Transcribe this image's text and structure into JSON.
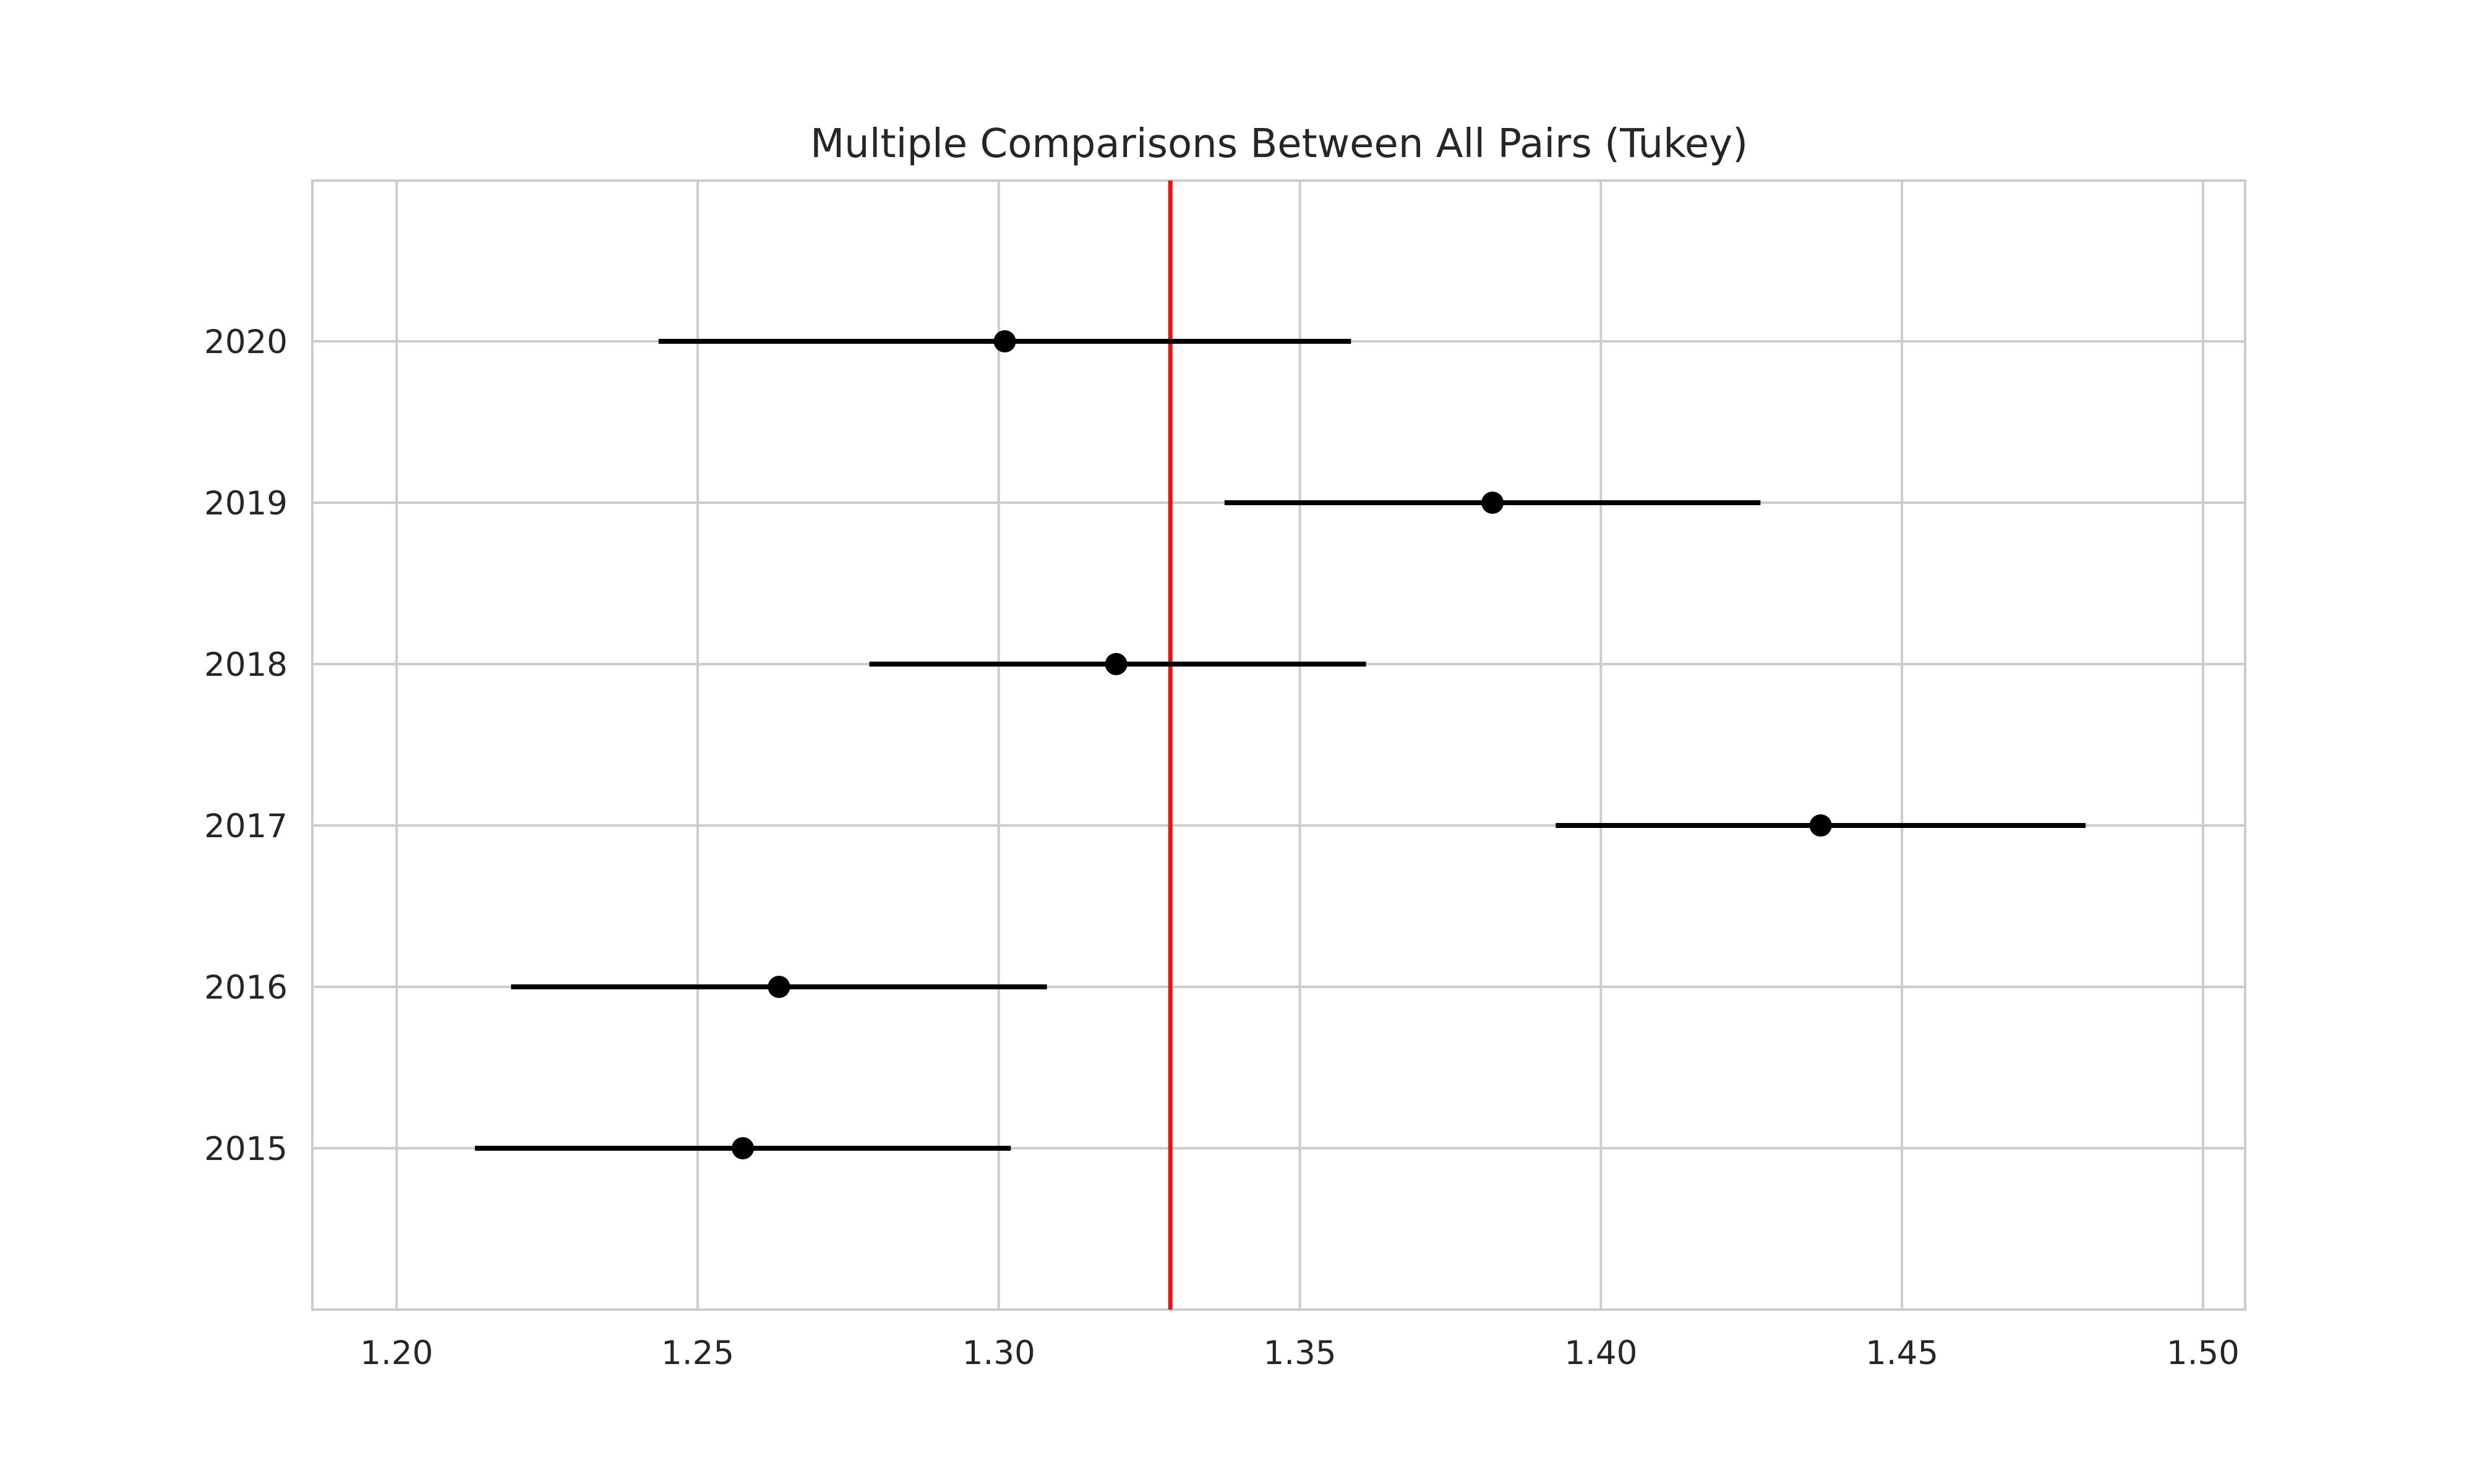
{
  "chart_data": {
    "type": "errorbar",
    "title": "Multiple Comparisons Between All Pairs (Tukey)",
    "xlabel": "",
    "ylabel": "",
    "xlim": [
      1.186,
      1.507
    ],
    "x_ticks": [
      1.2,
      1.25,
      1.3,
      1.35,
      1.4,
      1.45,
      1.5
    ],
    "x_tick_labels": [
      "1.20",
      "1.25",
      "1.30",
      "1.35",
      "1.40",
      "1.45",
      "1.50"
    ],
    "grid": true,
    "reference_line": {
      "x": 1.3285,
      "color": "#ee1111"
    },
    "colors": {
      "marker": "#000000",
      "grid": "#cccccc",
      "frame": "#cccccc",
      "text": "#262626"
    },
    "groups": [
      {
        "label": "2020",
        "mean": 1.301,
        "lower": 1.2435,
        "upper": 1.3585
      },
      {
        "label": "2019",
        "mean": 1.382,
        "lower": 1.3375,
        "upper": 1.4265
      },
      {
        "label": "2018",
        "mean": 1.3195,
        "lower": 1.2785,
        "upper": 1.361
      },
      {
        "label": "2017",
        "mean": 1.4365,
        "lower": 1.3925,
        "upper": 1.4805
      },
      {
        "label": "2016",
        "mean": 1.2635,
        "lower": 1.219,
        "upper": 1.308
      },
      {
        "label": "2015",
        "mean": 1.2575,
        "lower": 1.213,
        "upper": 1.302
      }
    ]
  }
}
